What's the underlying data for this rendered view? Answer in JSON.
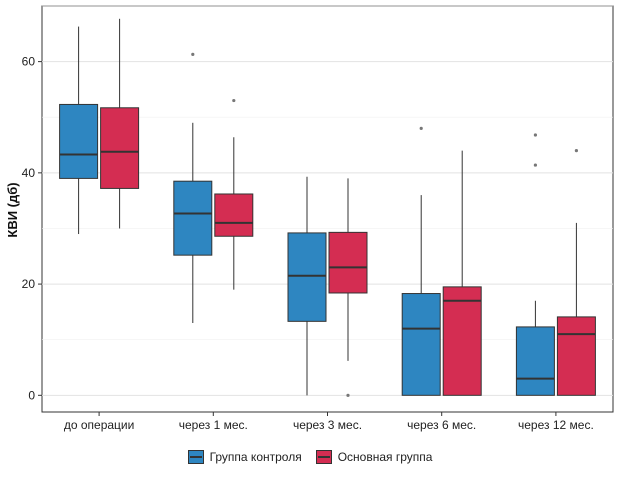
{
  "chart_data": {
    "type": "box",
    "title": "",
    "xlabel": "",
    "ylabel": "КВИ (дб)",
    "ylim": [
      -3,
      70
    ],
    "yticks": [
      0,
      20,
      40,
      60
    ],
    "grid": true,
    "legend_position": "bottom",
    "categories": [
      "до операции",
      "через 1 мес.",
      "через 3 мес.",
      "через 6 мес.",
      "через 12 мес."
    ],
    "series": [
      {
        "name": "Группа контроля",
        "color": "#2e86c1",
        "boxes": [
          {
            "whisker_low": 29,
            "q1": 39,
            "median": 43.3,
            "q3": 52.3,
            "whisker_high": 66.3,
            "outliers": []
          },
          {
            "whisker_low": 13,
            "q1": 25.2,
            "median": 32.7,
            "q3": 38.5,
            "whisker_high": 49,
            "outliers": [
              61.3
            ]
          },
          {
            "whisker_low": 0,
            "q1": 13.3,
            "median": 21.5,
            "q3": 29.2,
            "whisker_high": 39.3,
            "outliers": []
          },
          {
            "whisker_low": 0,
            "q1": 0,
            "median": 12,
            "q3": 18.3,
            "whisker_high": 36,
            "outliers": [
              48
            ]
          },
          {
            "whisker_low": 0,
            "q1": 0,
            "median": 3,
            "q3": 12.3,
            "whisker_high": 17,
            "outliers": [
              41.4,
              46.8
            ]
          }
        ]
      },
      {
        "name": "Основная группа",
        "color": "#d42d52",
        "boxes": [
          {
            "whisker_low": 30,
            "q1": 37.2,
            "median": 43.8,
            "q3": 51.7,
            "whisker_high": 67.7,
            "outliers": []
          },
          {
            "whisker_low": 19,
            "q1": 28.6,
            "median": 31,
            "q3": 36.2,
            "whisker_high": 46.4,
            "outliers": [
              53
            ]
          },
          {
            "whisker_low": 6.2,
            "q1": 18.4,
            "median": 23,
            "q3": 29.3,
            "whisker_high": 39,
            "outliers": [
              0
            ]
          },
          {
            "whisker_low": 0,
            "q1": 0,
            "median": 17,
            "q3": 19.5,
            "whisker_high": 44,
            "outliers": []
          },
          {
            "whisker_low": 0,
            "q1": 0,
            "median": 11,
            "q3": 14.1,
            "whisker_high": 31,
            "outliers": [
              44
            ]
          }
        ]
      }
    ]
  }
}
